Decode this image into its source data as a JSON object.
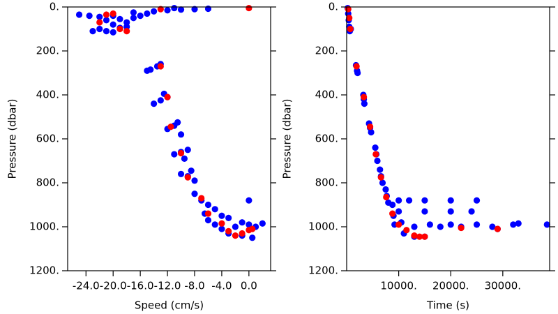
{
  "chart_data": [
    {
      "type": "scatter",
      "xlabel": "Speed (cm/s)",
      "ylabel": "Pressure (dbar)",
      "y_inverted": true,
      "xlim": [
        -26.7,
        3.2
      ],
      "ylim": [
        0,
        1200
      ],
      "xticks": [
        {
          "value": -24,
          "label": "-24.0"
        },
        {
          "value": -20,
          "label": "-20.0"
        },
        {
          "value": -16,
          "label": "-16.0"
        },
        {
          "value": -12,
          "label": "-12.0"
        },
        {
          "value": -8,
          "label": "-8.0"
        },
        {
          "value": -4,
          "label": "-4.0"
        },
        {
          "value": 0,
          "label": "0.0"
        }
      ],
      "yticks": [
        {
          "value": 0,
          "label": "0."
        },
        {
          "value": 200,
          "label": "200."
        },
        {
          "value": 400,
          "label": "400."
        },
        {
          "value": 600,
          "label": "600."
        },
        {
          "value": 800,
          "label": "800."
        },
        {
          "value": 1000,
          "label": "1000."
        },
        {
          "value": 1200,
          "label": "1200."
        }
      ],
      "series": [
        {
          "color": "#0000ff",
          "x": [
            -25,
            -23.5,
            -22,
            -21,
            -20,
            -22,
            -21,
            -19,
            -18,
            -17,
            -16,
            -15,
            -14,
            -12,
            -10,
            -8,
            -6,
            -20,
            -19,
            -18,
            -23,
            -20,
            -17,
            -11,
            -15,
            -14.5,
            -13.5,
            -13,
            -14,
            -13,
            -12,
            -12.5,
            -12,
            -11,
            -10.5,
            -10,
            -11,
            -10,
            -9,
            -9.5,
            -10,
            -9,
            -8,
            -8.5,
            -8,
            -7,
            -6,
            -5,
            -6.5,
            -4,
            -3,
            -5,
            -4,
            -2,
            -1,
            0,
            1,
            2,
            0,
            -1,
            -3,
            0.5,
            -6
          ],
          "values": [
            35,
            40,
            45,
            60,
            80,
            100,
            110,
            95,
            70,
            50,
            40,
            30,
            20,
            15,
            12,
            10,
            8,
            40,
            55,
            90,
            110,
            115,
            25,
            5,
            290,
            285,
            270,
            260,
            440,
            425,
            410,
            395,
            555,
            540,
            525,
            580,
            670,
            660,
            650,
            690,
            760,
            770,
            790,
            745,
            850,
            880,
            900,
            920,
            940,
            950,
            960,
            990,
            1010,
            1000,
            980,
            990,
            1000,
            985,
            880,
            1040,
            1030,
            1050,
            970
          ]
        },
        {
          "color": "#ff0000",
          "x": [
            -21,
            -22,
            -20,
            -19,
            -18,
            -13,
            0,
            -13,
            -12,
            -11.5,
            -10,
            -9,
            -7,
            -6,
            -4,
            -3,
            -2,
            -1,
            0,
            0.5
          ],
          "values": [
            35,
            70,
            30,
            100,
            110,
            10,
            5,
            270,
            410,
            545,
            665,
            775,
            870,
            940,
            985,
            1020,
            1040,
            1030,
            1015,
            1010
          ]
        }
      ]
    },
    {
      "type": "scatter",
      "xlabel": "Time (s)",
      "ylabel": "Pressure (dbar)",
      "y_inverted": true,
      "xlim": [
        0,
        39000
      ],
      "ylim": [
        0,
        1200
      ],
      "xticks": [
        {
          "value": 10000,
          "label": "10000."
        },
        {
          "value": 20000,
          "label": "20000."
        },
        {
          "value": 30000,
          "label": "30000."
        }
      ],
      "yticks": [
        {
          "value": 0,
          "label": "0."
        },
        {
          "value": 200,
          "label": "200."
        },
        {
          "value": 400,
          "label": "400."
        },
        {
          "value": 600,
          "label": "600."
        },
        {
          "value": 800,
          "label": "800."
        },
        {
          "value": 1000,
          "label": "1000."
        },
        {
          "value": 1200,
          "label": "1200."
        }
      ],
      "series": [
        {
          "color": "#0000ff",
          "x": [
            200,
            300,
            400,
            500,
            600,
            800,
            1800,
            2000,
            2100,
            3200,
            3300,
            3400,
            4300,
            4500,
            4700,
            5500,
            5700,
            5900,
            6400,
            6600,
            6900,
            7500,
            7700,
            8000,
            8800,
            9000,
            9200,
            10000,
            12000,
            15000,
            20000,
            25000,
            10000,
            15000,
            20000,
            24000,
            10500,
            13000,
            16000,
            20000,
            25000,
            11000,
            13000,
            15000,
            28000,
            29000,
            32000,
            33000,
            38500,
            18000,
            22000
          ],
          "values": [
            5,
            30,
            60,
            90,
            110,
            100,
            265,
            290,
            300,
            400,
            420,
            440,
            530,
            550,
            570,
            640,
            670,
            700,
            740,
            770,
            800,
            830,
            860,
            890,
            900,
            950,
            990,
            880,
            880,
            880,
            880,
            880,
            930,
            930,
            930,
            930,
            980,
            1000,
            990,
            990,
            990,
            1030,
            1045,
            1045,
            1000,
            1010,
            990,
            985,
            990,
            1000,
            1000
          ]
        },
        {
          "color": "#ff0000",
          "x": [
            300,
            500,
            700,
            1900,
            3300,
            4500,
            5600,
            6600,
            7600,
            8800,
            10000,
            11500,
            13000,
            14000,
            15000,
            22000,
            29000
          ],
          "values": [
            10,
            50,
            100,
            270,
            410,
            545,
            670,
            775,
            865,
            940,
            990,
            1015,
            1040,
            1045,
            1045,
            1005,
            1010
          ]
        }
      ]
    }
  ]
}
